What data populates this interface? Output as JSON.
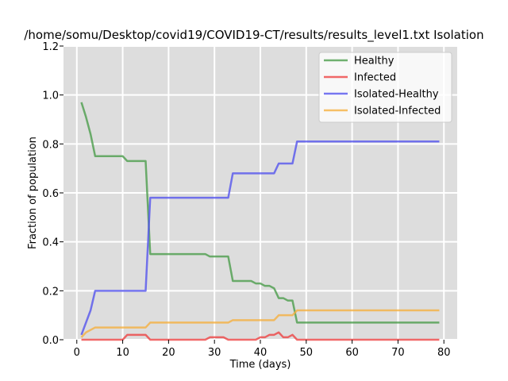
{
  "chart_data": {
    "type": "line",
    "title": "/home/somu/Desktop/covid19/COVID19-CT/results/results_level1.txt Isolation",
    "xlabel": "Time (days)",
    "ylabel": "Fraction of population",
    "xlim": [
      -2.9,
      82.9
    ],
    "ylim": [
      0,
      1.2
    ],
    "xticks": [
      0,
      10,
      20,
      30,
      40,
      50,
      60,
      70,
      80
    ],
    "yticks": [
      0.0,
      0.2,
      0.4,
      0.6,
      0.8,
      1.0,
      1.2
    ],
    "xtick_labels": [
      "0",
      "10",
      "20",
      "30",
      "40",
      "50",
      "60",
      "70",
      "80"
    ],
    "ytick_labels": [
      "0.0",
      "0.2",
      "0.4",
      "0.6",
      "0.8",
      "1.0",
      "1.2"
    ],
    "grid": true,
    "background": "#dddddd",
    "grid_color": "#ffffff",
    "legend_position": "top-right",
    "series": [
      {
        "name": "Healthy",
        "color": "#4c9e4c",
        "points": [
          [
            1,
            0.97
          ],
          [
            2,
            0.91
          ],
          [
            3,
            0.84
          ],
          [
            4,
            0.75
          ],
          [
            5,
            0.75
          ],
          [
            10,
            0.75
          ],
          [
            11,
            0.73
          ],
          [
            15,
            0.73
          ],
          [
            16,
            0.35
          ],
          [
            28,
            0.35
          ],
          [
            29,
            0.34
          ],
          [
            33,
            0.34
          ],
          [
            34,
            0.24
          ],
          [
            38,
            0.24
          ],
          [
            39,
            0.23
          ],
          [
            40,
            0.23
          ],
          [
            41,
            0.22
          ],
          [
            42,
            0.22
          ],
          [
            43,
            0.21
          ],
          [
            44,
            0.17
          ],
          [
            45,
            0.17
          ],
          [
            46,
            0.16
          ],
          [
            47,
            0.16
          ],
          [
            48,
            0.07
          ],
          [
            79,
            0.07
          ]
        ]
      },
      {
        "name": "Infected",
        "color": "#ee4444",
        "points": [
          [
            1,
            0.0
          ],
          [
            10,
            0.0
          ],
          [
            11,
            0.02
          ],
          [
            15,
            0.02
          ],
          [
            16,
            0.0
          ],
          [
            28,
            0.0
          ],
          [
            29,
            0.01
          ],
          [
            32,
            0.01
          ],
          [
            33,
            0.0
          ],
          [
            39,
            0.0
          ],
          [
            40,
            0.01
          ],
          [
            41,
            0.01
          ],
          [
            42,
            0.02
          ],
          [
            43,
            0.02
          ],
          [
            44,
            0.03
          ],
          [
            45,
            0.01
          ],
          [
            46,
            0.01
          ],
          [
            47,
            0.02
          ],
          [
            48,
            0.0
          ],
          [
            79,
            0.0
          ]
        ]
      },
      {
        "name": "Isolated-Healthy",
        "color": "#5555ee",
        "points": [
          [
            1,
            0.02
          ],
          [
            3,
            0.12
          ],
          [
            4,
            0.2
          ],
          [
            15,
            0.2
          ],
          [
            16,
            0.58
          ],
          [
            33,
            0.58
          ],
          [
            34,
            0.68
          ],
          [
            43,
            0.68
          ],
          [
            44,
            0.72
          ],
          [
            47,
            0.72
          ],
          [
            48,
            0.81
          ],
          [
            79,
            0.81
          ]
        ]
      },
      {
        "name": "Isolated-Infected",
        "color": "#f5b041",
        "points": [
          [
            1,
            0.01
          ],
          [
            2,
            0.03
          ],
          [
            3,
            0.04
          ],
          [
            4,
            0.05
          ],
          [
            15,
            0.05
          ],
          [
            16,
            0.07
          ],
          [
            33,
            0.07
          ],
          [
            34,
            0.08
          ],
          [
            43,
            0.08
          ],
          [
            44,
            0.1
          ],
          [
            47,
            0.1
          ],
          [
            48,
            0.12
          ],
          [
            79,
            0.12
          ]
        ]
      }
    ]
  }
}
